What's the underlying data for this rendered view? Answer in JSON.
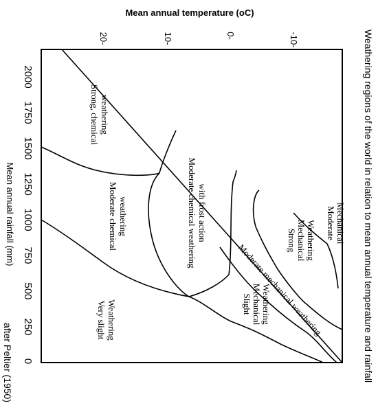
{
  "title": "Weathering regions of the world in relation to mean annual temperature and rainfall",
  "temperature_axis": {
    "label": "Mean annual temperature (oC)",
    "ticks": [
      "20-",
      "10-",
      "0-",
      "-10-"
    ]
  },
  "rainfall_axis": {
    "label": "Mean annual rainfall (mm)",
    "ticks": [
      "2000",
      "1750",
      "1500",
      "1250",
      "1000",
      "750",
      "500",
      "250",
      "0"
    ]
  },
  "source": "after Peltier (1950)",
  "regions": {
    "strong_chemical": [
      "Strong, chemical",
      "weathering"
    ],
    "moderate_chemical_frost": [
      "Moderate chemical weathering",
      "with frost action"
    ],
    "moderate_chemical": [
      "Moderate chemical",
      "weathering"
    ],
    "very_slight": [
      "Very slight",
      "Weathering"
    ],
    "moderate": [
      "Moderate",
      "Mechanical"
    ],
    "strong_mechanical": [
      "Strong",
      "Mechanical",
      "Weathering"
    ],
    "slight_mechanical": [
      "Slight",
      "Mechanical",
      "Weathering"
    ],
    "moderate_mechanical": "Moderate mechanical weathering"
  }
}
